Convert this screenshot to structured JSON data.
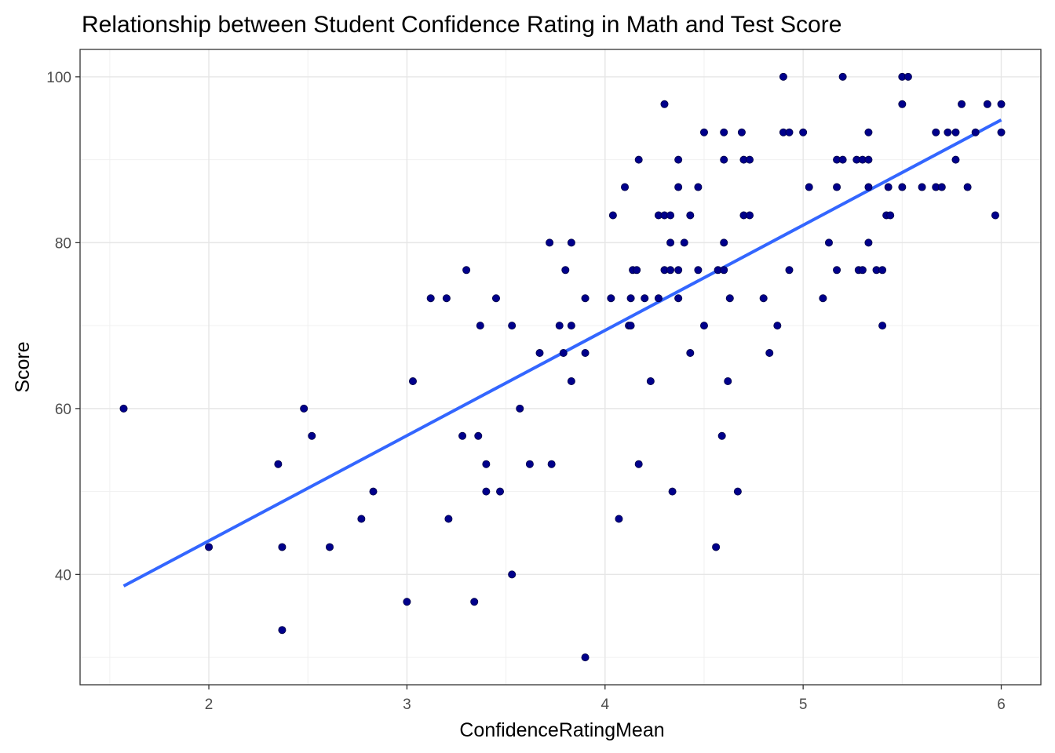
{
  "chart_data": {
    "type": "scatter",
    "title": "Relationship between Student Confidence Rating in Math and Test Score",
    "xlabel": "ConfidenceRatingMean",
    "ylabel": "Score",
    "xlim": [
      1.35,
      6.2
    ],
    "ylim": [
      26.7,
      103.3
    ],
    "x_ticks": [
      2,
      3,
      4,
      5,
      6
    ],
    "x_tick_labels": [
      "2",
      "3",
      "4",
      "5",
      "6"
    ],
    "y_ticks": [
      40,
      60,
      80,
      100
    ],
    "y_tick_labels": [
      "40",
      "60",
      "80",
      "100"
    ],
    "grid": true,
    "point_color": "#00008b",
    "line_color": "#3366ff",
    "trend_line": {
      "x": [
        1.57,
        6.0
      ],
      "y": [
        38.6,
        94.8
      ]
    },
    "points": [
      [
        1.57,
        60
      ],
      [
        2.0,
        43.3
      ],
      [
        2.35,
        53.3
      ],
      [
        2.37,
        43.3
      ],
      [
        2.37,
        33.3
      ],
      [
        2.48,
        60
      ],
      [
        2.52,
        56.7
      ],
      [
        2.61,
        43.3
      ],
      [
        2.77,
        46.7
      ],
      [
        2.83,
        50
      ],
      [
        3.0,
        36.7
      ],
      [
        3.03,
        63.3
      ],
      [
        3.12,
        73.3
      ],
      [
        3.2,
        73.3
      ],
      [
        3.21,
        46.7
      ],
      [
        3.28,
        56.7
      ],
      [
        3.3,
        76.7
      ],
      [
        3.34,
        36.7
      ],
      [
        3.36,
        56.7
      ],
      [
        3.37,
        70
      ],
      [
        3.4,
        53.3
      ],
      [
        3.4,
        50
      ],
      [
        3.45,
        73.3
      ],
      [
        3.47,
        50
      ],
      [
        3.53,
        70
      ],
      [
        3.53,
        40
      ],
      [
        3.57,
        60
      ],
      [
        3.62,
        53.3
      ],
      [
        3.67,
        66.7
      ],
      [
        3.72,
        80
      ],
      [
        3.73,
        53.3
      ],
      [
        3.77,
        70
      ],
      [
        3.79,
        66.7
      ],
      [
        3.8,
        76.7
      ],
      [
        3.83,
        80
      ],
      [
        3.83,
        70
      ],
      [
        3.83,
        63.3
      ],
      [
        3.9,
        73.3
      ],
      [
        3.9,
        66.7
      ],
      [
        3.9,
        30
      ],
      [
        4.03,
        73.3
      ],
      [
        4.04,
        83.3
      ],
      [
        4.07,
        46.7
      ],
      [
        4.1,
        86.7
      ],
      [
        4.12,
        70
      ],
      [
        4.13,
        70
      ],
      [
        4.13,
        73.3
      ],
      [
        4.14,
        76.7
      ],
      [
        4.16,
        76.7
      ],
      [
        4.17,
        90
      ],
      [
        4.17,
        53.3
      ],
      [
        4.2,
        73.3
      ],
      [
        4.23,
        63.3
      ],
      [
        4.27,
        83.3
      ],
      [
        4.27,
        73.3
      ],
      [
        4.3,
        96.7
      ],
      [
        4.3,
        76.7
      ],
      [
        4.3,
        83.3
      ],
      [
        4.33,
        83.3
      ],
      [
        4.33,
        80
      ],
      [
        4.33,
        76.7
      ],
      [
        4.34,
        50
      ],
      [
        4.37,
        90
      ],
      [
        4.37,
        86.7
      ],
      [
        4.37,
        76.7
      ],
      [
        4.37,
        73.3
      ],
      [
        4.4,
        80
      ],
      [
        4.43,
        83.3
      ],
      [
        4.43,
        66.7
      ],
      [
        4.47,
        86.7
      ],
      [
        4.47,
        76.7
      ],
      [
        4.5,
        93.3
      ],
      [
        4.5,
        70
      ],
      [
        4.56,
        43.3
      ],
      [
        4.57,
        76.7
      ],
      [
        4.59,
        56.7
      ],
      [
        4.6,
        93.3
      ],
      [
        4.6,
        90
      ],
      [
        4.6,
        80
      ],
      [
        4.6,
        76.7
      ],
      [
        4.62,
        63.3
      ],
      [
        4.63,
        73.3
      ],
      [
        4.67,
        50
      ],
      [
        4.69,
        93.3
      ],
      [
        4.7,
        90
      ],
      [
        4.7,
        83.3
      ],
      [
        4.73,
        90
      ],
      [
        4.73,
        83.3
      ],
      [
        4.8,
        73.3
      ],
      [
        4.83,
        66.7
      ],
      [
        4.87,
        70
      ],
      [
        4.9,
        100
      ],
      [
        4.9,
        93.3
      ],
      [
        4.93,
        93.3
      ],
      [
        4.93,
        76.7
      ],
      [
        5.0,
        93.3
      ],
      [
        5.03,
        86.7
      ],
      [
        5.1,
        73.3
      ],
      [
        5.13,
        80
      ],
      [
        5.17,
        90
      ],
      [
        5.17,
        86.7
      ],
      [
        5.17,
        76.7
      ],
      [
        5.2,
        100
      ],
      [
        5.2,
        90
      ],
      [
        5.27,
        90
      ],
      [
        5.28,
        76.7
      ],
      [
        5.3,
        90
      ],
      [
        5.3,
        76.7
      ],
      [
        5.33,
        93.3
      ],
      [
        5.33,
        90
      ],
      [
        5.33,
        86.7
      ],
      [
        5.33,
        80
      ],
      [
        5.37,
        76.7
      ],
      [
        5.4,
        76.7
      ],
      [
        5.4,
        70
      ],
      [
        5.42,
        83.3
      ],
      [
        5.43,
        86.7
      ],
      [
        5.44,
        83.3
      ],
      [
        5.5,
        100
      ],
      [
        5.5,
        96.7
      ],
      [
        5.5,
        86.7
      ],
      [
        5.53,
        100
      ],
      [
        5.6,
        86.7
      ],
      [
        5.67,
        93.3
      ],
      [
        5.67,
        86.7
      ],
      [
        5.7,
        86.7
      ],
      [
        5.73,
        93.3
      ],
      [
        5.77,
        93.3
      ],
      [
        5.77,
        90
      ],
      [
        5.8,
        96.7
      ],
      [
        5.83,
        86.7
      ],
      [
        5.87,
        93.3
      ],
      [
        5.93,
        96.7
      ],
      [
        5.97,
        83.3
      ],
      [
        6.0,
        96.7
      ],
      [
        6.0,
        93.3
      ]
    ]
  }
}
